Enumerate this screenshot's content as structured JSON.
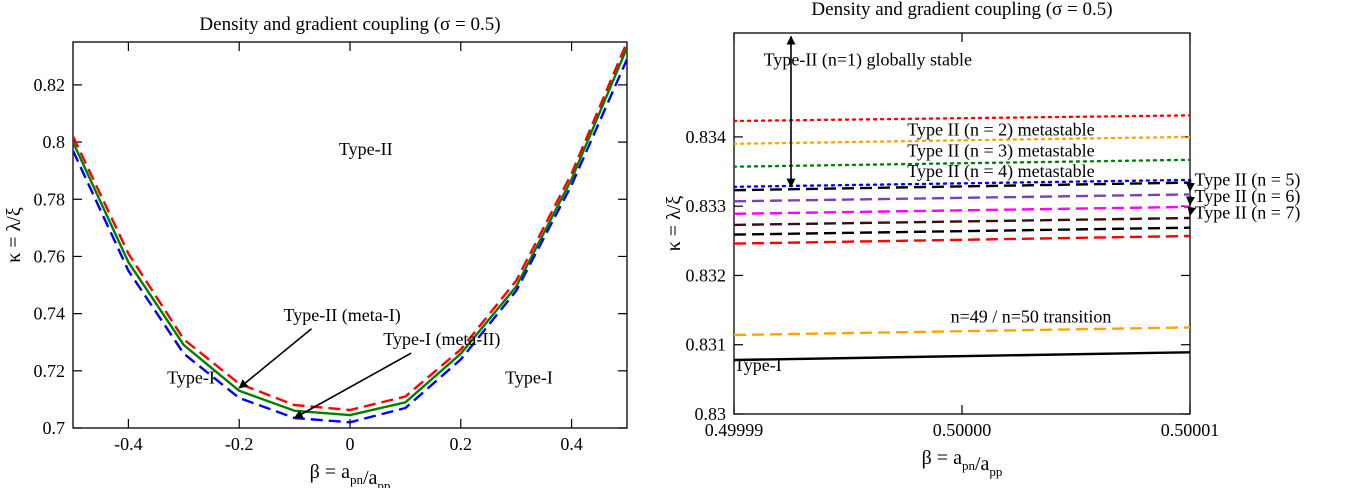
{
  "chart_data": [
    {
      "type": "line",
      "title": "Density and gradient coupling (σ = 0.5)",
      "xlabel": "β = a_pn/a_pp",
      "ylabel": "κ = λ/ξ",
      "xlim": [
        -0.5,
        0.5
      ],
      "ylim": [
        0.7,
        0.835
      ],
      "xticks": [
        -0.4,
        -0.2,
        0,
        0.2,
        0.4
      ],
      "xtick_labels": [
        "-0.4",
        "-0.2",
        "0",
        "0.2",
        "0.4"
      ],
      "yticks": [
        0.7,
        0.72,
        0.74,
        0.76,
        0.78,
        0.8,
        0.82
      ],
      "ytick_labels": [
        "0.7",
        "0.72",
        "0.74",
        "0.76",
        "0.78",
        "0.8",
        "0.82"
      ],
      "series": [
        {
          "color": "#ff0000",
          "dash": "dashed",
          "x": [
            -0.5,
            -0.4,
            -0.3,
            -0.2,
            -0.1,
            0,
            0.1,
            0.2,
            0.3,
            0.4,
            0.5
          ],
          "y": [
            0.802,
            0.761,
            0.731,
            0.7155,
            0.708,
            0.7063,
            0.711,
            0.7275,
            0.7515,
            0.789,
            0.835
          ]
        },
        {
          "color": "#008000",
          "dash": "solid",
          "x": [
            -0.5,
            -0.4,
            -0.3,
            -0.2,
            -0.1,
            0,
            0.1,
            0.2,
            0.3,
            0.4,
            0.5
          ],
          "y": [
            0.8,
            0.758,
            0.729,
            0.713,
            0.706,
            0.7045,
            0.709,
            0.726,
            0.7495,
            0.787,
            0.833
          ]
        },
        {
          "color": "#0000ff",
          "dash": "dashed",
          "x": [
            -0.5,
            -0.4,
            -0.3,
            -0.2,
            -0.1,
            0,
            0.1,
            0.2,
            0.3,
            0.4,
            0.5
          ],
          "y": [
            0.797,
            0.755,
            0.726,
            0.7105,
            0.7035,
            0.702,
            0.707,
            0.724,
            0.748,
            0.785,
            0.829
          ]
        }
      ],
      "annotations": [
        {
          "text": "Type-II",
          "x": -0.02,
          "y": 0.7955
        },
        {
          "text": "Type-I",
          "x": -0.33,
          "y": 0.7155
        },
        {
          "text": "Type-I",
          "x": 0.28,
          "y": 0.7155
        },
        {
          "text": "Type-II (meta-I)",
          "x": -0.12,
          "y": 0.7375,
          "arrow_to": [
            -0.2,
            0.714
          ]
        },
        {
          "text": "Type-I (meta-II)",
          "x": 0.06,
          "y": 0.729,
          "arrow_to": [
            -0.1,
            0.7035
          ]
        }
      ]
    },
    {
      "type": "line",
      "title": "Density and gradient coupling (σ = 0.5)",
      "xlabel": "β = a_pn/a_pp",
      "ylabel": "κ = λ/ξ",
      "xlim": [
        0.49999,
        0.50001
      ],
      "ylim": [
        0.83,
        0.8355
      ],
      "xticks": [
        0.49999,
        0.5,
        0.50001
      ],
      "xtick_labels": [
        "0.49999",
        "0.50000",
        "0.50001"
      ],
      "yticks": [
        0.83,
        0.831,
        0.832,
        0.833,
        0.834
      ],
      "ytick_labels": [
        "0.83",
        "0.831",
        "0.832",
        "0.833",
        "0.834"
      ],
      "series": [
        {
          "color": "#ff0000",
          "dash": "dotted",
          "x": [
            0.49999,
            0.50001
          ],
          "y": [
            0.83423,
            0.83431
          ]
        },
        {
          "color": "#ffa500",
          "dash": "dotted",
          "x": [
            0.49999,
            0.50001
          ],
          "y": [
            0.8339,
            0.834
          ]
        },
        {
          "color": "#008000",
          "dash": "dotted",
          "x": [
            0.49999,
            0.50001
          ],
          "y": [
            0.83357,
            0.83367
          ]
        },
        {
          "color": "#0000ff",
          "dash": "dotted",
          "x": [
            0.49999,
            0.50001
          ],
          "y": [
            0.83328,
            0.83338
          ]
        },
        {
          "color": "#000000",
          "dash": "dashed",
          "x": [
            0.49999,
            0.50001
          ],
          "y": [
            0.83323,
            0.83334
          ]
        },
        {
          "color": "#7b3fc4",
          "dash": "dashed",
          "x": [
            0.49999,
            0.50001
          ],
          "y": [
            0.83307,
            0.83317
          ]
        },
        {
          "color": "#ff00ff",
          "dash": "dashed",
          "x": [
            0.49999,
            0.50001
          ],
          "y": [
            0.83289,
            0.83299
          ]
        },
        {
          "color": "#3d0f0f",
          "dash": "dashed",
          "x": [
            0.49999,
            0.50001
          ],
          "y": [
            0.83273,
            0.83283
          ]
        },
        {
          "color": "#000000",
          "dash": "dashed",
          "x": [
            0.49999,
            0.50001
          ],
          "y": [
            0.83259,
            0.83269
          ]
        },
        {
          "color": "#ff0000",
          "dash": "dashed",
          "x": [
            0.49999,
            0.50001
          ],
          "y": [
            0.83246,
            0.83257
          ]
        },
        {
          "color": "#ffa500",
          "dash": "dashed",
          "x": [
            0.49999,
            0.50001
          ],
          "y": [
            0.83114,
            0.83125
          ]
        },
        {
          "color": "#000000",
          "dash": "solid",
          "x": [
            0.49999,
            0.50001
          ],
          "y": [
            0.83078,
            0.83089
          ]
        }
      ],
      "annotations": [
        {
          "text": "Type-II (n=1) globally stable",
          "x": 0.4999913,
          "y": 0.83503
        },
        {
          "text": "Type II (n = 2) metastable",
          "x": 0.4999976,
          "y": 0.83402
        },
        {
          "text": "Type II (n = 3) metastable",
          "x": 0.4999976,
          "y": 0.83372
        },
        {
          "text": "Type II (n = 4) metastable",
          "x": 0.4999976,
          "y": 0.83342
        },
        {
          "text": "Type II (n = 5)",
          "x": 0.5000102,
          "y": 0.8333,
          "arrow_to": [
            0.50001,
            0.83322
          ]
        },
        {
          "text": "Type II (n = 6)",
          "x": 0.5000102,
          "y": 0.83306,
          "arrow_to": [
            0.50001,
            0.83302
          ]
        },
        {
          "text": "Type II (n = 7)",
          "x": 0.5000102,
          "y": 0.83282,
          "arrow_to": [
            0.50001,
            0.83287
          ]
        },
        {
          "text": "n=49 / n=50 transition",
          "x": 0.4999995,
          "y": 0.83132
        },
        {
          "text": "Type-I",
          "x": 0.49999,
          "y": 0.83062
        }
      ],
      "double_arrow": {
        "x": 0.4999925,
        "y1": 0.83545,
        "y2": 0.83328
      }
    }
  ]
}
